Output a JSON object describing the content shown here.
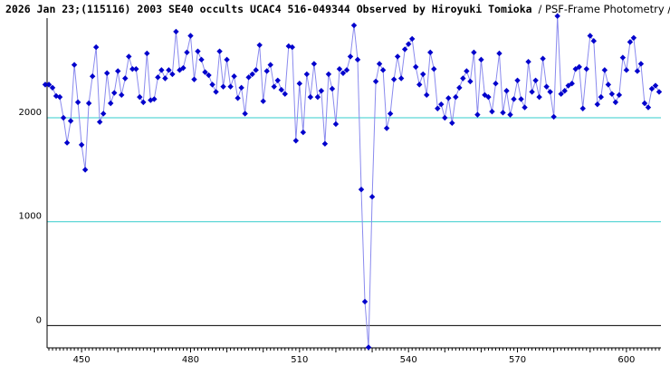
{
  "chart_data": {
    "type": "line",
    "title": "2026 Jan 23;(115116) 2003 SE40 occults UCAC4 516-049344 Observed by Hiroyuki Tomioka",
    "subtitle": "/ PSF-Frame Photometry /",
    "xlabel": "",
    "ylabel": "",
    "xlim": [
      440.5,
      609.5
    ],
    "ylim": [
      -215,
      2960
    ],
    "x_ticks": [
      450,
      480,
      510,
      540,
      570,
      600
    ],
    "y_ticks": [
      0,
      1000,
      2000
    ],
    "reference_lines": [
      0,
      1000,
      2000
    ],
    "grid": false,
    "colors": {
      "series": "#0000cc",
      "line": "#8a8aee",
      "ref_line": "#33cccc",
      "zero_line": "#000000"
    },
    "series": [
      {
        "x_start": 440,
        "x_step": 1,
        "values": [
          2320,
          2320,
          2290,
          2210,
          2200,
          2000,
          1760,
          1970,
          2510,
          2150,
          1740,
          1500,
          2140,
          2400,
          2680,
          1960,
          2040,
          2430,
          2140,
          2240,
          2450,
          2220,
          2380,
          2590,
          2470,
          2470,
          2200,
          2150,
          2620,
          2170,
          2180,
          2390,
          2460,
          2380,
          2460,
          2420,
          2830,
          2460,
          2480,
          2630,
          2790,
          2370,
          2640,
          2560,
          2440,
          2410,
          2320,
          2250,
          2640,
          2300,
          2560,
          2300,
          2400,
          2190,
          2290,
          2040,
          2390,
          2420,
          2460,
          2700,
          2160,
          2450,
          2510,
          2300,
          2360,
          2270,
          2230,
          2690,
          2680,
          1780,
          2330,
          1860,
          2420,
          2200,
          2520,
          2200,
          2260,
          1750,
          2420,
          2280,
          1940,
          2470,
          2430,
          2460,
          2590,
          2890,
          2560,
          1310,
          230,
          -210,
          1240,
          2350,
          2520,
          2460,
          1900,
          2040,
          2370,
          2590,
          2380,
          2660,
          2710,
          2760,
          2490,
          2320,
          2420,
          2220,
          2630,
          2470,
          2090,
          2130,
          2000,
          2190,
          1950,
          2200,
          2290,
          2380,
          2450,
          2350,
          2630,
          2030,
          2560,
          2220,
          2200,
          2060,
          2330,
          2620,
          2050,
          2260,
          2030,
          2180,
          2360,
          2180,
          2100,
          2540,
          2250,
          2360,
          2200,
          2570,
          2300,
          2250,
          2010,
          2980,
          2230,
          2260,
          2310,
          2330,
          2470,
          2490,
          2090,
          2470,
          2790,
          2740,
          2130,
          2200,
          2460,
          2320,
          2230,
          2150,
          2220,
          2580,
          2460,
          2730,
          2770,
          2450,
          2520,
          2140,
          2100,
          2280,
          2310,
          2250
        ]
      }
    ]
  }
}
